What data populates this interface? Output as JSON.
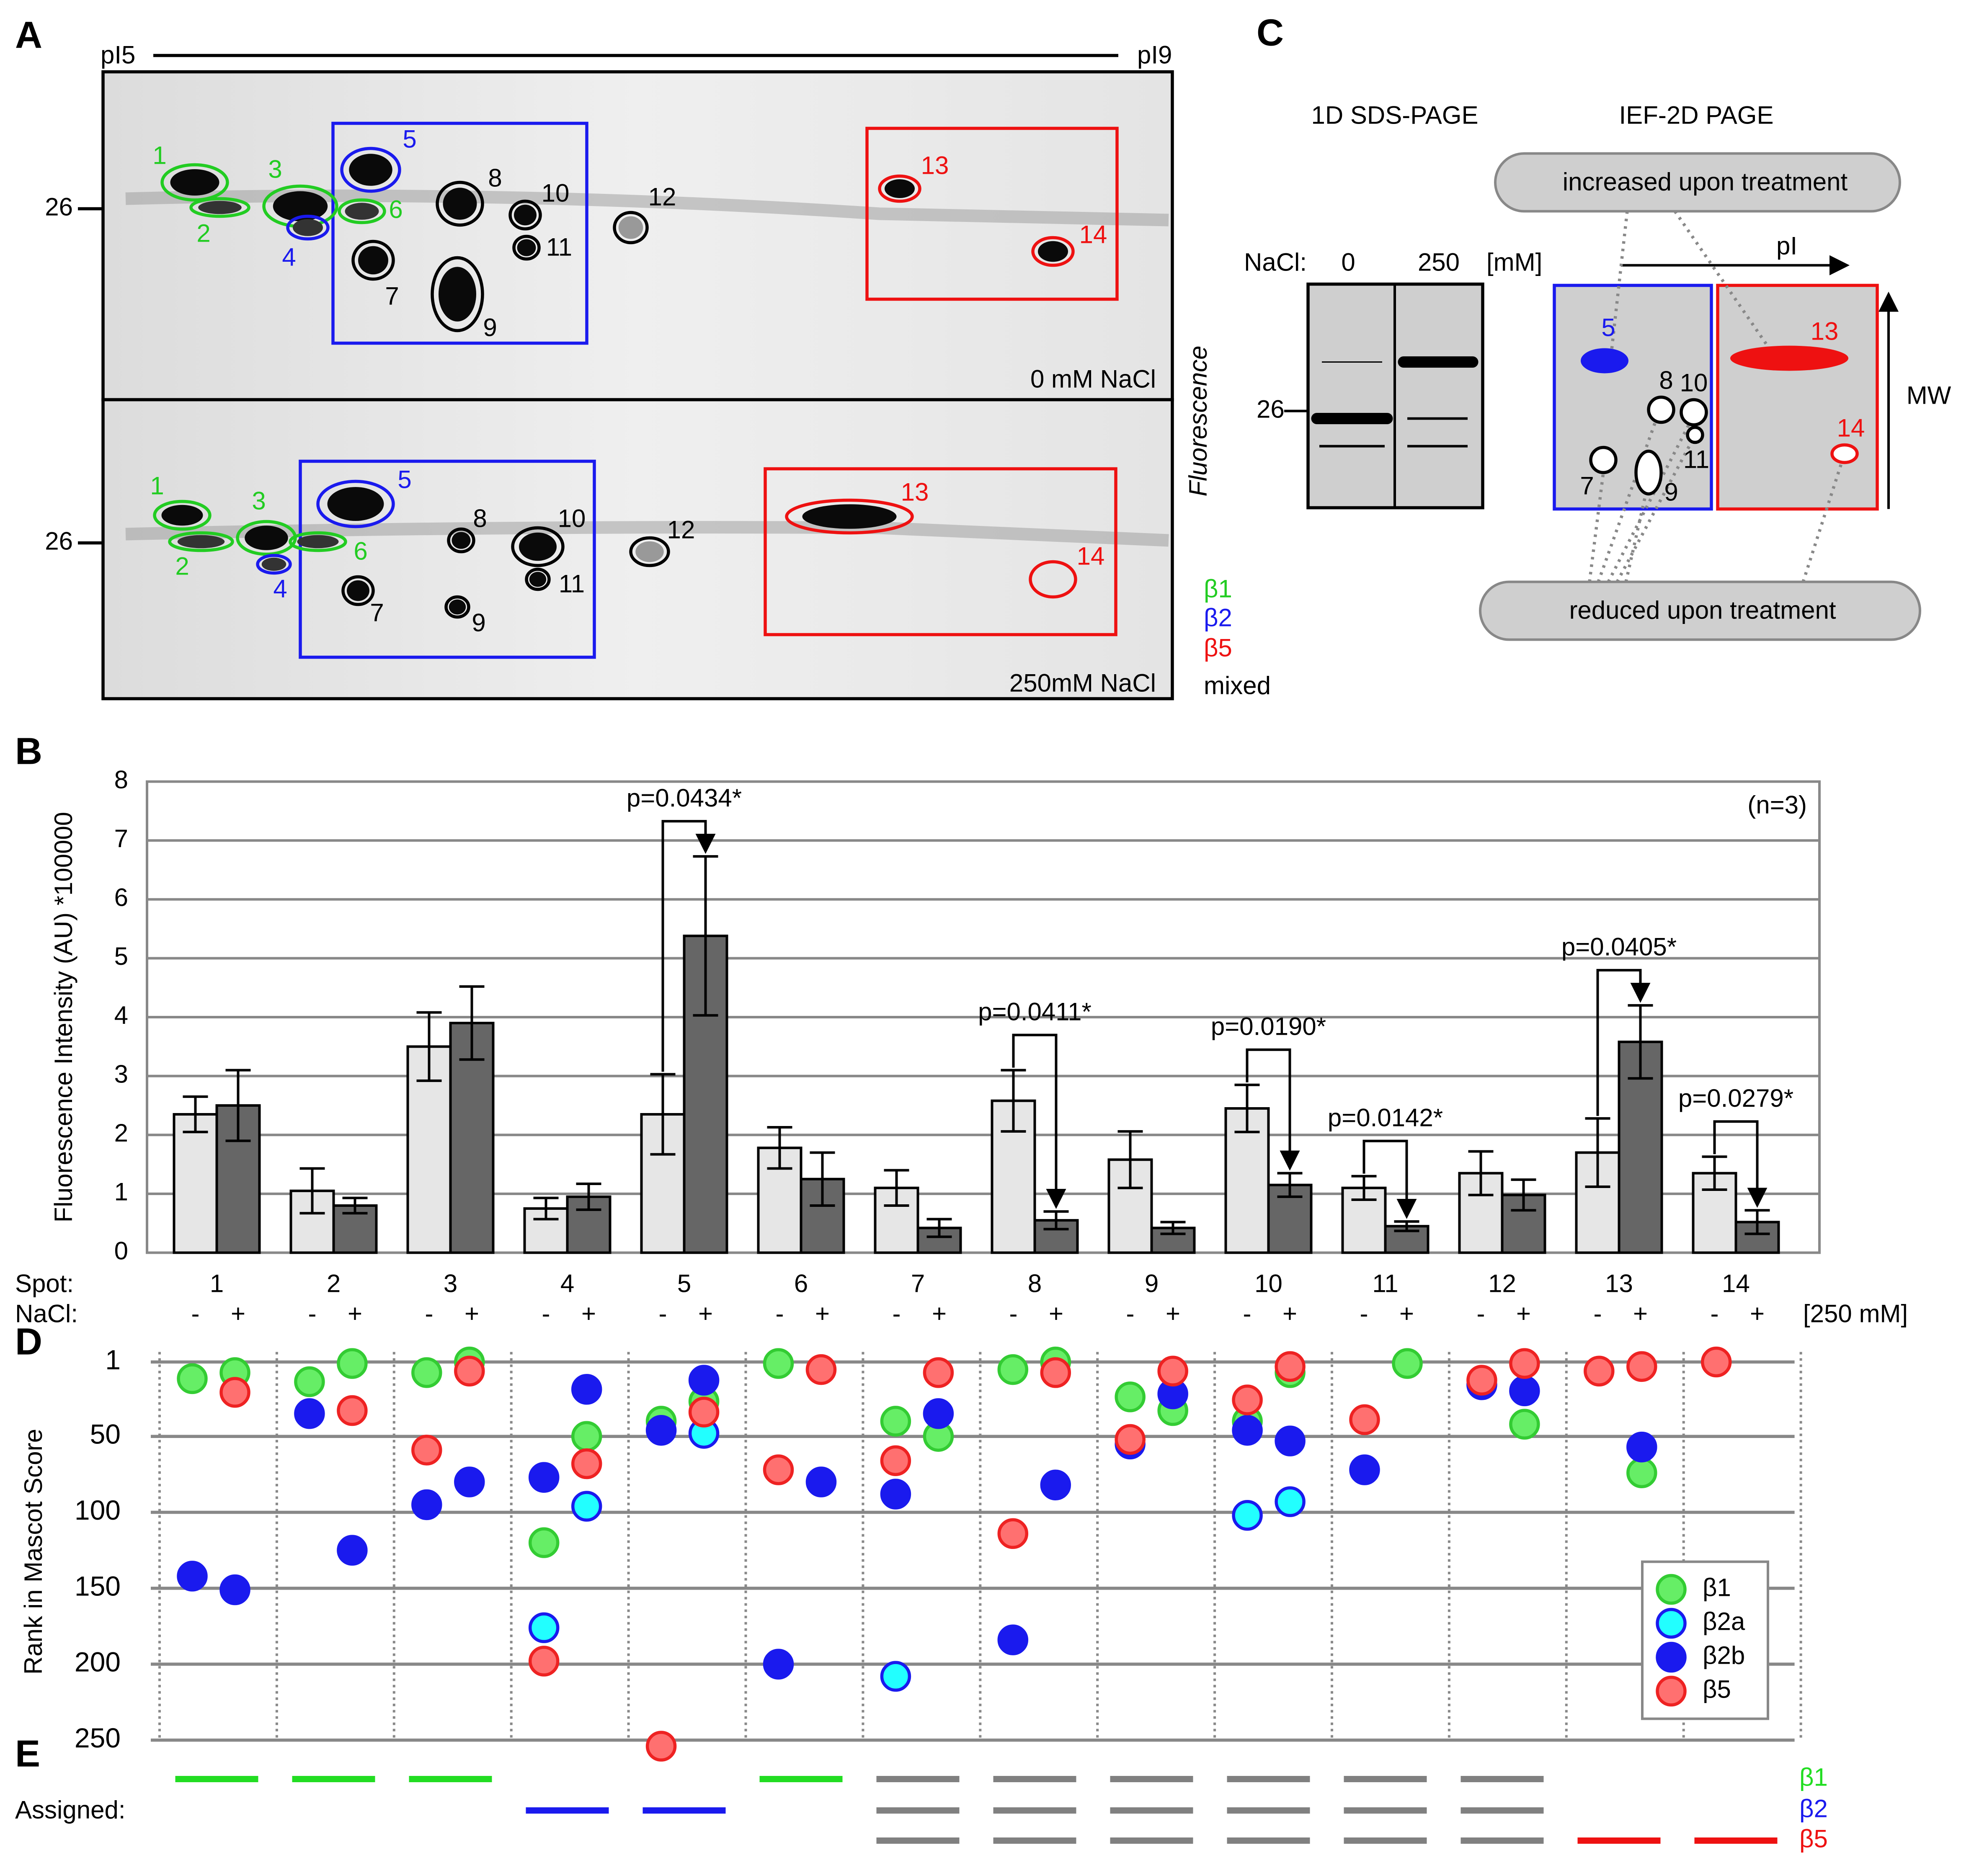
{
  "panel_labels": [
    "A",
    "B",
    "C",
    "D",
    "E"
  ],
  "gel": {
    "pi_start": "pI5",
    "pi_end": "pI9",
    "mw_marker": "26",
    "conditions": [
      "0 mM NaCl",
      "250mM NaCl"
    ],
    "detection": "Fluorescence",
    "spots": [
      "1",
      "2",
      "3",
      "4",
      "5",
      "6",
      "7",
      "8",
      "9",
      "10",
      "11",
      "12",
      "13",
      "14"
    ],
    "spot_colors": [
      "#22cc22",
      "#22cc22",
      "#22cc22",
      "#1a1aee",
      "#1a1aee",
      "#22cc22",
      "#000000",
      "#000000",
      "#000000",
      "#000000",
      "#000000",
      "#000000",
      "#ee1111",
      "#ee1111"
    ],
    "legend": [
      {
        "name": "β1",
        "color": "#22cc22"
      },
      {
        "name": "β2",
        "color": "#1a1aee"
      },
      {
        "name": "β5",
        "color": "#ee1111"
      },
      {
        "name": "mixed",
        "color": "#000000"
      }
    ]
  },
  "schematic": {
    "sds_title": "1D SDS-PAGE",
    "ief_title": "IEF-2D PAGE",
    "increased": "increased upon treatment",
    "reduced": "reduced upon treatment",
    "nacl_label": "NaCl:",
    "nacl_levels": [
      "0",
      "250"
    ],
    "unit": "[mM]",
    "mw_marker": "26",
    "pi_label": "pI",
    "mw_label": "MW",
    "spots": [
      "5",
      "13",
      "8",
      "10",
      "11",
      "7",
      "9",
      "14"
    ]
  },
  "chart_data": [
    {
      "type": "bar",
      "ylabel": "Fluorescence Intensity (AU) *100000",
      "note": "(n=3)",
      "x_label": "Spot:",
      "series_label": "NaCl:",
      "series_unit": "[250 mM]",
      "categories": [
        "1",
        "2",
        "3",
        "4",
        "5",
        "6",
        "7",
        "8",
        "9",
        "10",
        "11",
        "12",
        "13",
        "14"
      ],
      "series": [
        {
          "name": "-",
          "color": "#e6e6e6",
          "values": [
            2.35,
            1.05,
            3.5,
            0.75,
            2.35,
            1.78,
            1.1,
            2.58,
            1.58,
            2.45,
            1.1,
            1.35,
            1.7,
            1.35
          ],
          "errors": [
            0.3,
            0.38,
            0.58,
            0.18,
            0.68,
            0.35,
            0.3,
            0.52,
            0.48,
            0.4,
            0.2,
            0.37,
            0.58,
            0.28
          ]
        },
        {
          "name": "+",
          "color": "#666666",
          "values": [
            2.5,
            0.8,
            3.9,
            0.95,
            5.38,
            1.25,
            0.42,
            0.55,
            0.42,
            1.15,
            0.45,
            0.98,
            3.58,
            0.52
          ],
          "errors": [
            0.6,
            0.13,
            0.62,
            0.22,
            1.35,
            0.45,
            0.15,
            0.15,
            0.1,
            0.2,
            0.08,
            0.26,
            0.62,
            0.2
          ]
        }
      ],
      "ylim": [
        0,
        8
      ],
      "yticks": [
        0,
        1,
        2,
        3,
        4,
        5,
        6,
        7,
        8
      ],
      "grid": true,
      "annotations": [
        {
          "text": "p=0.0434*",
          "category": "5"
        },
        {
          "text": "p=0.0411*",
          "category": "8"
        },
        {
          "text": "p=0.0190*",
          "category": "10"
        },
        {
          "text": "p=0.0142*",
          "category": "11"
        },
        {
          "text": "p=0.0405*",
          "category": "13"
        },
        {
          "text": "p=0.0279*",
          "category": "14"
        }
      ]
    },
    {
      "type": "scatter",
      "ylabel": "Rank in Mascot Score",
      "ylim": [
        1,
        250
      ],
      "y_inverted": true,
      "yticks": [
        1,
        50,
        100,
        150,
        200,
        250
      ],
      "grid": true,
      "legend": "lower right",
      "series": [
        {
          "name": "β1",
          "color": "#66ee66",
          "edgecolor": "#33cc33",
          "minus": [
            12,
            14,
            8,
            120,
            40,
            2,
            40,
            6,
            24,
            40,
            null,
            null,
            null,
            null
          ],
          "plus": [
            8,
            2,
            1,
            50,
            27,
            null,
            50,
            1,
            33,
            8,
            2,
            42,
            74,
            null
          ]
        },
        {
          "name": "β2a",
          "color": "#22ffff",
          "edgecolor": "#1a1aee",
          "minus": [
            null,
            null,
            null,
            176,
            null,
            null,
            208,
            null,
            null,
            102,
            null,
            null,
            null,
            null
          ],
          "plus": [
            null,
            null,
            null,
            96,
            48,
            null,
            null,
            null,
            null,
            93,
            null,
            null,
            null,
            null
          ]
        },
        {
          "name": "β2b",
          "color": "#1a1aee",
          "edgecolor": "#1a1aee",
          "minus": [
            142,
            35,
            95,
            77,
            46,
            200,
            88,
            184,
            55,
            46,
            72,
            16,
            null,
            null
          ],
          "plus": [
            151,
            125,
            80,
            19,
            13,
            80,
            35,
            82,
            22,
            53,
            null,
            20,
            57,
            null
          ]
        },
        {
          "name": "β5",
          "color": "#ff7070",
          "edgecolor": "#ee2222",
          "minus": [
            null,
            null,
            59,
            198,
            254,
            72,
            66,
            114,
            52,
            26,
            39,
            13,
            7,
            1
          ],
          "plus": [
            21,
            33,
            7,
            68,
            34,
            6,
            8,
            8,
            7,
            4,
            null,
            2,
            4,
            null
          ]
        }
      ]
    }
  ],
  "assigned": {
    "label": "Assigned:",
    "subunits": [
      {
        "name": "β1",
        "color": "#22dd22"
      },
      {
        "name": "β2",
        "color": "#1a1aee"
      },
      {
        "name": "β5",
        "color": "#ee1111"
      }
    ],
    "mixed_color": "#808080",
    "spots": [
      [
        "β1"
      ],
      [
        "β1"
      ],
      [
        "β1"
      ],
      [
        "β2"
      ],
      [
        "β2"
      ],
      [
        "β1"
      ],
      [
        "β1",
        "β2",
        "β5"
      ],
      [
        "β1",
        "β2",
        "β5"
      ],
      [
        "β1",
        "β2",
        "β5"
      ],
      [
        "β1",
        "β2",
        "β5"
      ],
      [
        "β1",
        "β2",
        "β5"
      ],
      [
        "β1",
        "β2",
        "β5"
      ],
      [
        "β5"
      ],
      [
        "β5"
      ]
    ]
  }
}
